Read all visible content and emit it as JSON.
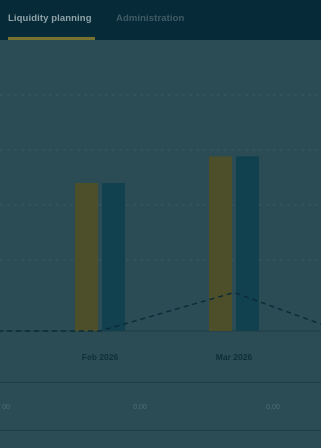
{
  "tabs": [
    {
      "label": "Liquidity planning",
      "active": true
    },
    {
      "label": "Administration",
      "active": false
    }
  ],
  "chart_data": {
    "type": "bar",
    "categories": [
      "Feb 2026",
      "Mar 2026"
    ],
    "series": [
      {
        "values": [
          100,
          118
        ],
        "color": "#4d4f2a"
      },
      {
        "values": [
          100,
          118
        ],
        "color": "#11404f"
      }
    ],
    "line": {
      "values": [
        0,
        26
      ],
      "color": "#0b2a35",
      "style": "dashed"
    },
    "ylim": [
      0,
      140
    ],
    "grid": true
  },
  "table": {
    "row_values": [
      "00",
      "0,00",
      "0,00"
    ]
  },
  "colors": {
    "background": "#2b4c54",
    "header": "#072a38",
    "accent": "#77722f"
  }
}
